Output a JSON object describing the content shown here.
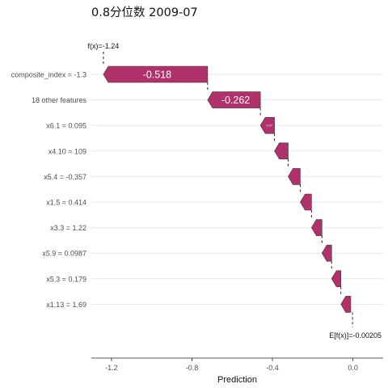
{
  "chart_data": {
    "type": "waterfall",
    "title": "0.8分位数 2009-07",
    "xlabel": "Prediction",
    "xlim": [
      -1.3,
      0.15
    ],
    "xticks": [
      -1.2,
      -0.8,
      -0.4,
      0.0
    ],
    "xtick_labels": [
      "-1.2",
      "-0.8",
      "-0.4",
      "0.0"
    ],
    "fx_label": "f(x)=-1.24",
    "base_label": "E[f(x)]=-0.00205",
    "base_value": -0.00205,
    "final_value": -1.24,
    "bar_color": "#b1316b",
    "features": [
      {
        "label": "composite_index = -1.3",
        "value": -0.518,
        "value_label": "-0.518"
      },
      {
        "label": "18 other features",
        "value": -0.262,
        "value_label": "-0.262"
      },
      {
        "label": "x6.1 = 0.095",
        "value": -0.07,
        "value_label": "-0.07"
      },
      {
        "label": "x4.10 = 109",
        "value": -0.068,
        "value_label": ""
      },
      {
        "label": "x5.4 = -0.357",
        "value": -0.06,
        "value_label": ""
      },
      {
        "label": "x1.5 = 0.414",
        "value": -0.056,
        "value_label": ""
      },
      {
        "label": "x3.3 = 1.22",
        "value": -0.052,
        "value_label": ""
      },
      {
        "label": "x5.9 = 0.0987",
        "value": -0.048,
        "value_label": ""
      },
      {
        "label": "x5.3 = 0.179",
        "value": -0.046,
        "value_label": ""
      },
      {
        "label": "x1.13 = 1.69",
        "value": -0.049,
        "value_label": ""
      }
    ]
  }
}
